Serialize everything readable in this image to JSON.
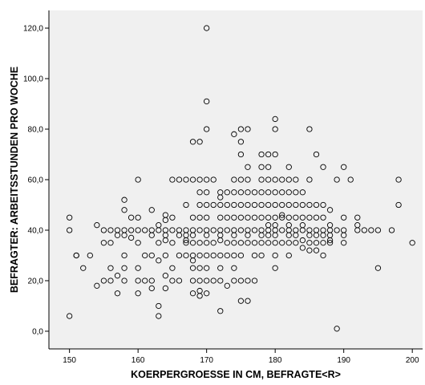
{
  "chart_data": {
    "type": "scatter",
    "title": "",
    "xlabel": "KOERPERGROESSE IN CM, BEFRAGTE<R>",
    "ylabel": "BEFRAGTER: ARBEITSSTUNDEN PRO WOCHE",
    "xlim": [
      147,
      201.5
    ],
    "ylim": [
      -7,
      127
    ],
    "x_ticks": [
      150,
      160,
      170,
      180,
      190,
      200
    ],
    "x_tick_labels": [
      "150",
      "160",
      "170",
      "180",
      "190",
      "200"
    ],
    "y_ticks": [
      0,
      20,
      40,
      60,
      80,
      100,
      120
    ],
    "y_tick_labels": [
      "0,0",
      "20,0",
      "40,0",
      "60,0",
      "80,0",
      "100,0",
      "120,0"
    ],
    "grid": false,
    "colors": {
      "plot_background": "#f0f0f0",
      "marker_stroke": "#000000",
      "axis": "#000000"
    },
    "points": [
      [
        150,
        45
      ],
      [
        150,
        40
      ],
      [
        150,
        6
      ],
      [
        151,
        30
      ],
      [
        151,
        30
      ],
      [
        152,
        25
      ],
      [
        153,
        30
      ],
      [
        154,
        42
      ],
      [
        154,
        18
      ],
      [
        155,
        40
      ],
      [
        155,
        35
      ],
      [
        155,
        20
      ],
      [
        156,
        40
      ],
      [
        156,
        35
      ],
      [
        156,
        25
      ],
      [
        156,
        20
      ],
      [
        157,
        40
      ],
      [
        157,
        38
      ],
      [
        157,
        15
      ],
      [
        157,
        22
      ],
      [
        158,
        52
      ],
      [
        158,
        48
      ],
      [
        158,
        40
      ],
      [
        158,
        38
      ],
      [
        158,
        30
      ],
      [
        158,
        25
      ],
      [
        158,
        20
      ],
      [
        159,
        45
      ],
      [
        159,
        40
      ],
      [
        159,
        37
      ],
      [
        160,
        60
      ],
      [
        160,
        45
      ],
      [
        160,
        40
      ],
      [
        160,
        35
      ],
      [
        160,
        25
      ],
      [
        160,
        20
      ],
      [
        160,
        15
      ],
      [
        161,
        40
      ],
      [
        161,
        20
      ],
      [
        161,
        30
      ],
      [
        162,
        40
      ],
      [
        162,
        38
      ],
      [
        162,
        30
      ],
      [
        162,
        20
      ],
      [
        162,
        17
      ],
      [
        162,
        48
      ],
      [
        163,
        42
      ],
      [
        163,
        40
      ],
      [
        163,
        35
      ],
      [
        163,
        28
      ],
      [
        163,
        10
      ],
      [
        163,
        6
      ],
      [
        164,
        46
      ],
      [
        164,
        44
      ],
      [
        164,
        40
      ],
      [
        164,
        38
      ],
      [
        164,
        36
      ],
      [
        164,
        30
      ],
      [
        164,
        22
      ],
      [
        164,
        17
      ],
      [
        165,
        60
      ],
      [
        165,
        45
      ],
      [
        165,
        40
      ],
      [
        165,
        35
      ],
      [
        165,
        25
      ],
      [
        165,
        20
      ],
      [
        166,
        60
      ],
      [
        166,
        40
      ],
      [
        166,
        38
      ],
      [
        166,
        30
      ],
      [
        166,
        20
      ],
      [
        167,
        60
      ],
      [
        167,
        50
      ],
      [
        167,
        40
      ],
      [
        167,
        38
      ],
      [
        167,
        36
      ],
      [
        167,
        35
      ],
      [
        167,
        30
      ],
      [
        168,
        60
      ],
      [
        168,
        45
      ],
      [
        168,
        40
      ],
      [
        168,
        38
      ],
      [
        168,
        35
      ],
      [
        168,
        30
      ],
      [
        168,
        28
      ],
      [
        168,
        25
      ],
      [
        168,
        20
      ],
      [
        168,
        15
      ],
      [
        168,
        75
      ],
      [
        169,
        75
      ],
      [
        169,
        60
      ],
      [
        169,
        55
      ],
      [
        169,
        50
      ],
      [
        169,
        45
      ],
      [
        169,
        40
      ],
      [
        169,
        35
      ],
      [
        169,
        30
      ],
      [
        169,
        25
      ],
      [
        169,
        20
      ],
      [
        169,
        14
      ],
      [
        169,
        16
      ],
      [
        170,
        120
      ],
      [
        170,
        91
      ],
      [
        170,
        80
      ],
      [
        170,
        60
      ],
      [
        170,
        55
      ],
      [
        170,
        50
      ],
      [
        170,
        45
      ],
      [
        170,
        40
      ],
      [
        170,
        38
      ],
      [
        170,
        35
      ],
      [
        170,
        30
      ],
      [
        170,
        25
      ],
      [
        170,
        20
      ],
      [
        170,
        15
      ],
      [
        171,
        60
      ],
      [
        171,
        50
      ],
      [
        171,
        40
      ],
      [
        171,
        35
      ],
      [
        171,
        30
      ],
      [
        171,
        20
      ],
      [
        172,
        55
      ],
      [
        172,
        53
      ],
      [
        172,
        50
      ],
      [
        172,
        45
      ],
      [
        172,
        40
      ],
      [
        172,
        38
      ],
      [
        172,
        36
      ],
      [
        172,
        30
      ],
      [
        172,
        25
      ],
      [
        172,
        20
      ],
      [
        172,
        8
      ],
      [
        173,
        55
      ],
      [
        173,
        50
      ],
      [
        173,
        45
      ],
      [
        173,
        40
      ],
      [
        173,
        35
      ],
      [
        173,
        30
      ],
      [
        173,
        18
      ],
      [
        174,
        60
      ],
      [
        174,
        55
      ],
      [
        174,
        50
      ],
      [
        174,
        45
      ],
      [
        174,
        40
      ],
      [
        174,
        38
      ],
      [
        174,
        35
      ],
      [
        174,
        30
      ],
      [
        174,
        25
      ],
      [
        174,
        20
      ],
      [
        174,
        78
      ],
      [
        175,
        80
      ],
      [
        175,
        75
      ],
      [
        175,
        70
      ],
      [
        175,
        60
      ],
      [
        175,
        55
      ],
      [
        175,
        50
      ],
      [
        175,
        45
      ],
      [
        175,
        40
      ],
      [
        175,
        35
      ],
      [
        175,
        30
      ],
      [
        175,
        20
      ],
      [
        175,
        12
      ],
      [
        176,
        80
      ],
      [
        176,
        65
      ],
      [
        176,
        60
      ],
      [
        176,
        55
      ],
      [
        176,
        50
      ],
      [
        176,
        45
      ],
      [
        176,
        40
      ],
      [
        176,
        38
      ],
      [
        176,
        35
      ],
      [
        176,
        20
      ],
      [
        176,
        12
      ],
      [
        177,
        55
      ],
      [
        177,
        50
      ],
      [
        177,
        45
      ],
      [
        177,
        40
      ],
      [
        177,
        35
      ],
      [
        177,
        30
      ],
      [
        177,
        20
      ],
      [
        178,
        70
      ],
      [
        178,
        65
      ],
      [
        178,
        60
      ],
      [
        178,
        55
      ],
      [
        178,
        50
      ],
      [
        178,
        45
      ],
      [
        178,
        40
      ],
      [
        178,
        38
      ],
      [
        178,
        35
      ],
      [
        178,
        30
      ],
      [
        179,
        70
      ],
      [
        179,
        65
      ],
      [
        179,
        60
      ],
      [
        179,
        55
      ],
      [
        179,
        50
      ],
      [
        179,
        45
      ],
      [
        179,
        42
      ],
      [
        179,
        40
      ],
      [
        179,
        38
      ],
      [
        179,
        35
      ],
      [
        180,
        84
      ],
      [
        180,
        80
      ],
      [
        180,
        70
      ],
      [
        180,
        60
      ],
      [
        180,
        55
      ],
      [
        180,
        50
      ],
      [
        180,
        45
      ],
      [
        180,
        42
      ],
      [
        180,
        40
      ],
      [
        180,
        38
      ],
      [
        180,
        35
      ],
      [
        180,
        30
      ],
      [
        180,
        25
      ],
      [
        181,
        60
      ],
      [
        181,
        55
      ],
      [
        181,
        50
      ],
      [
        181,
        46
      ],
      [
        181,
        45
      ],
      [
        181,
        40
      ],
      [
        181,
        35
      ],
      [
        182,
        65
      ],
      [
        182,
        60
      ],
      [
        182,
        55
      ],
      [
        182,
        50
      ],
      [
        182,
        45
      ],
      [
        182,
        42
      ],
      [
        182,
        40
      ],
      [
        182,
        38
      ],
      [
        182,
        35
      ],
      [
        182,
        30
      ],
      [
        183,
        60
      ],
      [
        183,
        55
      ],
      [
        183,
        50
      ],
      [
        183,
        45
      ],
      [
        183,
        40
      ],
      [
        183,
        38
      ],
      [
        183,
        35
      ],
      [
        184,
        55
      ],
      [
        184,
        50
      ],
      [
        184,
        45
      ],
      [
        184,
        42
      ],
      [
        184,
        40
      ],
      [
        184,
        36
      ],
      [
        184,
        33
      ],
      [
        185,
        80
      ],
      [
        185,
        60
      ],
      [
        185,
        50
      ],
      [
        185,
        45
      ],
      [
        185,
        40
      ],
      [
        185,
        38
      ],
      [
        185,
        35
      ],
      [
        185,
        32
      ],
      [
        186,
        70
      ],
      [
        186,
        50
      ],
      [
        186,
        45
      ],
      [
        186,
        40
      ],
      [
        186,
        38
      ],
      [
        186,
        35
      ],
      [
        186,
        32
      ],
      [
        187,
        65
      ],
      [
        187,
        50
      ],
      [
        187,
        45
      ],
      [
        187,
        40
      ],
      [
        187,
        38
      ],
      [
        187,
        35
      ],
      [
        187,
        30
      ],
      [
        188,
        48
      ],
      [
        188,
        42
      ],
      [
        188,
        40
      ],
      [
        188,
        38
      ],
      [
        188,
        36
      ],
      [
        188,
        35
      ],
      [
        189,
        60
      ],
      [
        189,
        40
      ],
      [
        189,
        1
      ],
      [
        190,
        65
      ],
      [
        190,
        45
      ],
      [
        190,
        40
      ],
      [
        190,
        38
      ],
      [
        190,
        35
      ],
      [
        191,
        60
      ],
      [
        192,
        45
      ],
      [
        192,
        42
      ],
      [
        192,
        40
      ],
      [
        193,
        40
      ],
      [
        194,
        40
      ],
      [
        195,
        40
      ],
      [
        195,
        25
      ],
      [
        197,
        40
      ],
      [
        198,
        60
      ],
      [
        198,
        50
      ],
      [
        200,
        35
      ]
    ]
  }
}
